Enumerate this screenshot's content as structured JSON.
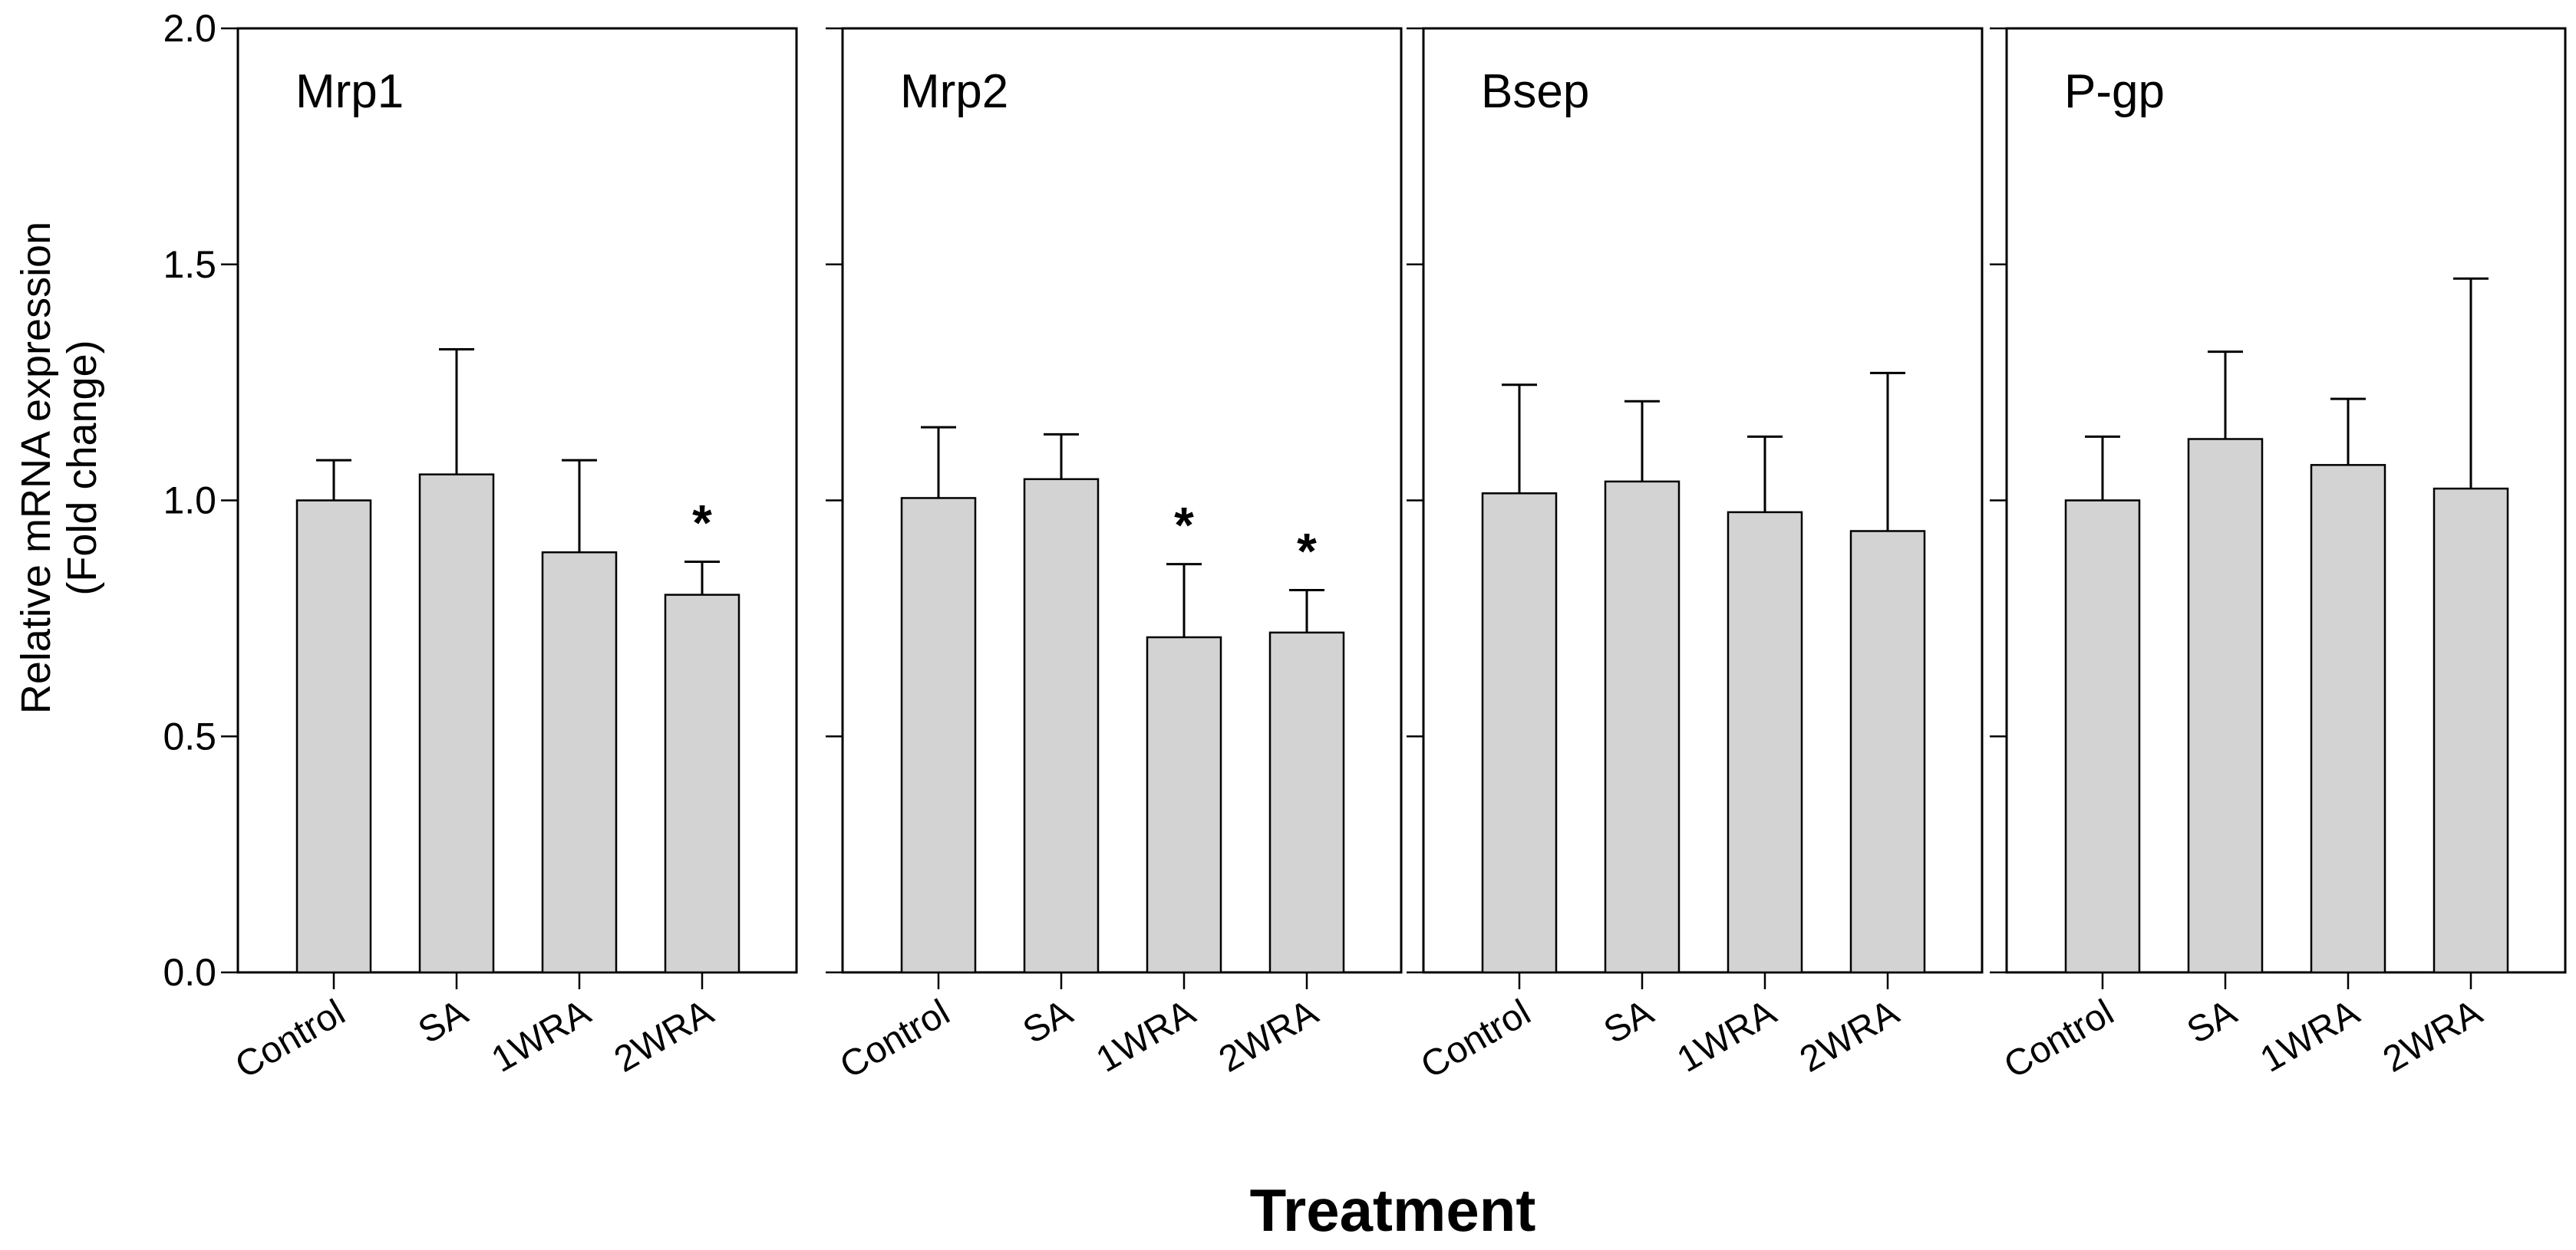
{
  "chart_data": {
    "type": "bar",
    "subtype": "faceted bar chart with error bars",
    "ylabel_line1": "Relative mRNA expression",
    "ylabel_line2": "(Fold change)",
    "xlabel": "Treatment",
    "ylim": [
      0,
      2.0
    ],
    "yticks": [
      0.0,
      0.5,
      1.0,
      1.5,
      2.0
    ],
    "ytick_labels": [
      "0.0",
      "0.5",
      "1.0",
      "1.5",
      "2.0"
    ],
    "categories": [
      "Control",
      "SA",
      "1WRA",
      "2WRA"
    ],
    "bar_color": "#d3d3d3",
    "significance_marker": "*",
    "panels": [
      {
        "title": "Mrp1",
        "values": [
          1.0,
          1.055,
          0.89,
          0.8
        ],
        "errors": [
          0.085,
          0.265,
          0.195,
          0.07
        ],
        "significant": [
          false,
          false,
          false,
          true
        ]
      },
      {
        "title": "Mrp2",
        "values": [
          1.005,
          1.045,
          0.71,
          0.72
        ],
        "errors": [
          0.15,
          0.095,
          0.155,
          0.09
        ],
        "significant": [
          false,
          false,
          true,
          true
        ]
      },
      {
        "title": "Bsep",
        "values": [
          1.015,
          1.04,
          0.975,
          0.935
        ],
        "errors": [
          0.23,
          0.17,
          0.16,
          0.335
        ],
        "significant": [
          false,
          false,
          false,
          false
        ]
      },
      {
        "title": "P-gp",
        "values": [
          1.0,
          1.13,
          1.075,
          1.025
        ],
        "errors": [
          0.135,
          0.185,
          0.14,
          0.445
        ],
        "significant": [
          false,
          false,
          false,
          false
        ]
      }
    ]
  }
}
